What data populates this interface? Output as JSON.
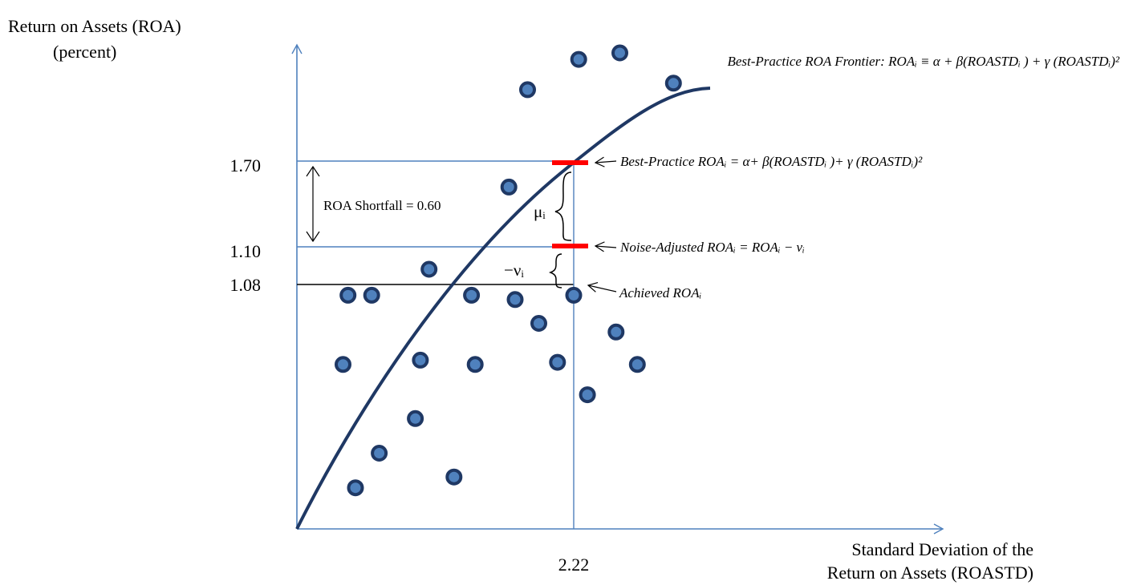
{
  "axes": {
    "y_title_line1": "Return on Assets (ROA)",
    "y_title_line2": "(percent)",
    "x_title_line1": "Standard Deviation of the",
    "x_title_line2": "Return on Assets (ROASTD)"
  },
  "ticks": {
    "y_top": "1.70",
    "y_mid": "1.10",
    "y_low": "1.08",
    "x_mark": "2.22"
  },
  "labels": {
    "frontier": "Best-Practice ROA Frontier: ROAᵢ ≡ α + β(ROASTDᵢ ) + γ (ROASTDᵢ)²",
    "best_practice": "Best-Practice ROAᵢ = α+ β(ROASTDᵢ )+ γ (ROASTDᵢ)²",
    "noise_adjusted": "Noise-Adjusted ROAᵢ = ROAᵢ − vᵢ",
    "achieved": "Achieved ROAᵢ",
    "shortfall": "ROA Shortfall = 0.60",
    "mu": "μᵢ",
    "neg_nu": "−νᵢ"
  },
  "colors": {
    "axis": "#4f81bd",
    "curve": "#1f3864",
    "marker": "#ff0000",
    "dot_fill": "#4f81bd",
    "dot_stroke": "#1f3864"
  },
  "points": [
    {
      "x": 0.41,
      "y": 1.08
    },
    {
      "x": 0.6,
      "y": 1.08
    },
    {
      "x": 1.4,
      "y": 1.08
    },
    {
      "x": 2.22,
      "y": 1.08
    },
    {
      "x": 0.37,
      "y": 0.76
    },
    {
      "x": 0.99,
      "y": 0.78
    },
    {
      "x": 1.43,
      "y": 0.76
    },
    {
      "x": 2.09,
      "y": 0.77
    },
    {
      "x": 2.33,
      "y": 0.62
    },
    {
      "x": 2.73,
      "y": 0.76
    },
    {
      "x": 2.56,
      "y": 0.91
    },
    {
      "x": 1.94,
      "y": 0.95
    },
    {
      "x": 1.75,
      "y": 1.06
    },
    {
      "x": 1.06,
      "y": 1.2
    },
    {
      "x": 1.7,
      "y": 1.58
    },
    {
      "x": 1.85,
      "y": 2.03
    },
    {
      "x": 2.26,
      "y": 2.17
    },
    {
      "x": 2.59,
      "y": 2.2
    },
    {
      "x": 3.02,
      "y": 2.06
    },
    {
      "x": 0.47,
      "y": 0.19
    },
    {
      "x": 0.66,
      "y": 0.35
    },
    {
      "x": 0.95,
      "y": 0.51
    },
    {
      "x": 1.26,
      "y": 0.24
    }
  ]
}
